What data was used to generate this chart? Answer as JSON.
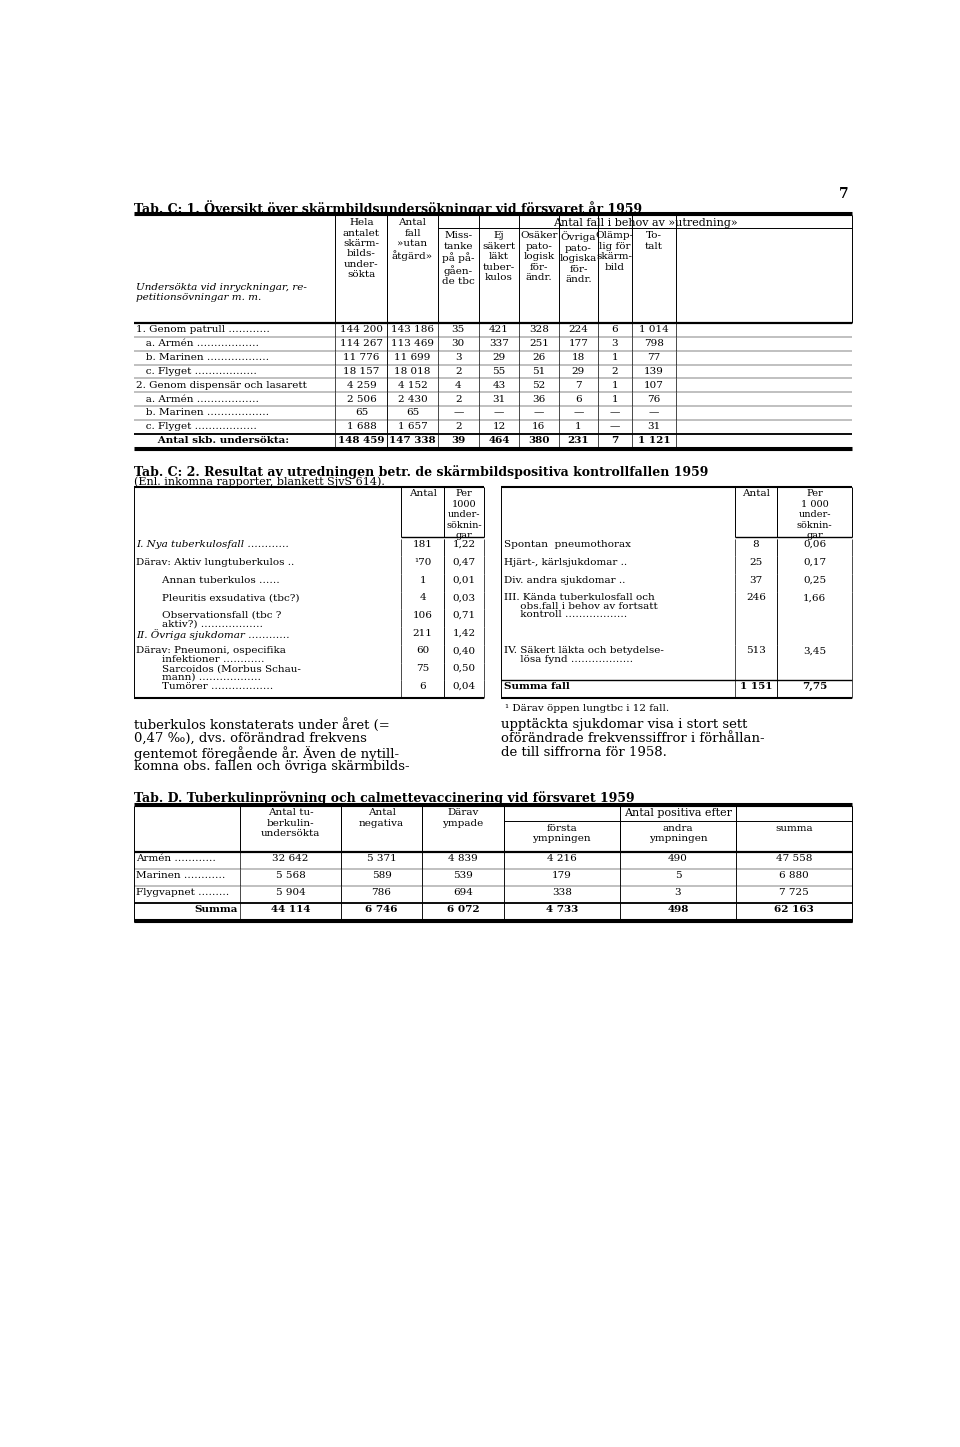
{
  "page_number": "7",
  "background_color": "#ffffff",
  "text_color": "#000000",
  "tab_c1_title": "Tab. C: 1. Översikt över skärmbildsundersökningar vid försvaret år 1959",
  "tab_c2_title": "Tab. C: 2. Resultat av utredningen betr. de skärmbildspositiva kontrollfallen 1959",
  "tab_c2_subtitle": "(Enl. inkomna rapporter, blankett SjvS 614).",
  "tab_c2_footnote": "¹ Därav öppen lungtbc i 12 fall.",
  "paragraph_text_left": "tuberkulos konstaterats under året (=\n0,47 ‰), dvs. oförändrad frekvens\ngentemot föregående år. Även de nytill-\nkomna obs. fallen och övriga skärmbilds-",
  "paragraph_text_right": "upptäckta sjukdomar visa i stort sett\noförändrade frekvenssiffror i förhållan-\nde till siffrorna för 1958.",
  "tab_d_title": "Tab. D. Tuberkulinprövning och calmettevaccinering vid försvaret 1959"
}
